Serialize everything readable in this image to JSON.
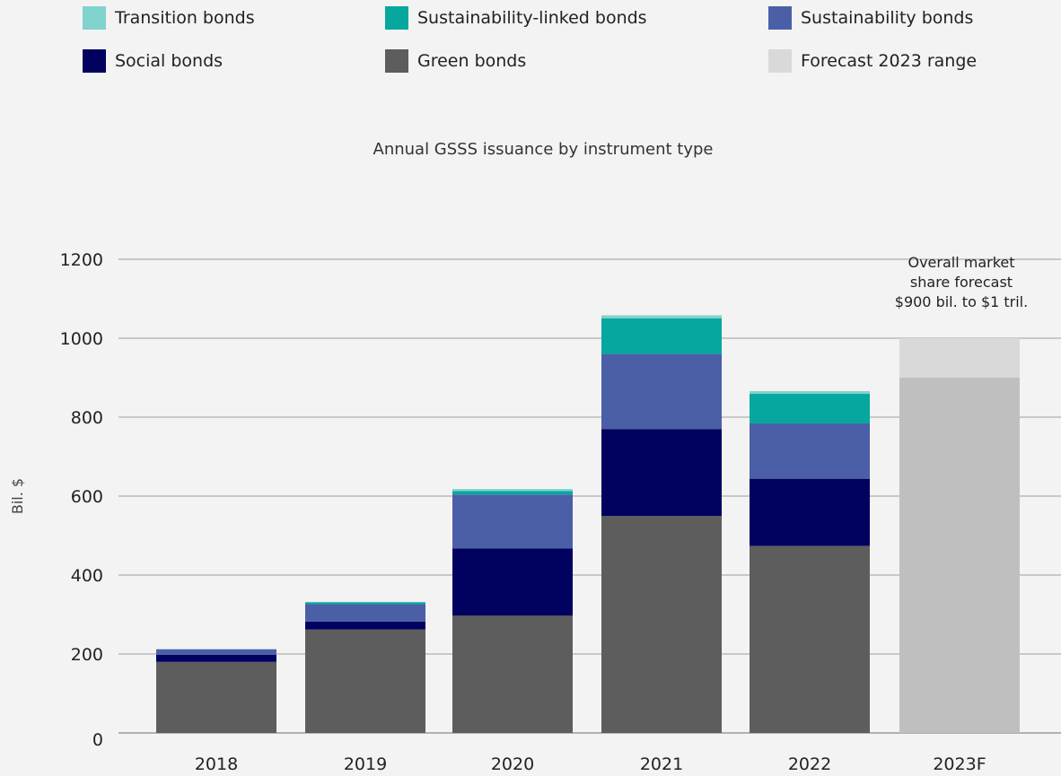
{
  "colors": {
    "transition": "#7fd3cc",
    "sustainability_linked": "#06a79e",
    "sustainability": "#4a5fa6",
    "social": "#010160",
    "green": "#5d5d5d",
    "forecast_range": "#d9d9d9",
    "forecast_base": "#bfbfbf",
    "gridline": "#c8c8c8"
  },
  "legend": [
    {
      "label": "Transition bonds",
      "color": "#7fd3cc",
      "icon": "square-swatch"
    },
    {
      "label": "Sustainability-linked bonds",
      "color": "#06a79e",
      "icon": "square-swatch"
    },
    {
      "label": "Sustainability bonds",
      "color": "#4a5fa6",
      "icon": "square-swatch"
    },
    {
      "label": "Social bonds",
      "color": "#010160",
      "icon": "square-swatch"
    },
    {
      "label": "Green bonds",
      "color": "#5d5d5d",
      "icon": "square-swatch"
    },
    {
      "label": "Forecast 2023 range",
      "color": "#d9d9d9",
      "icon": "square-swatch"
    }
  ],
  "chart_data": {
    "type": "bar",
    "stacked": true,
    "title": "Annual GSSS issuance by instrument type",
    "xlabel": "",
    "ylabel": "Bil. $",
    "ylim": [
      0,
      1200
    ],
    "yticks": [
      0,
      200,
      400,
      600,
      800,
      1000,
      1200
    ],
    "grid": true,
    "legend_position": "top",
    "categories": [
      "2018",
      "2019",
      "2020",
      "2021",
      "2022",
      "2023F"
    ],
    "series": [
      {
        "name": "Green bonds",
        "color": "#5d5d5d",
        "values": [
          180,
          262,
          297,
          550,
          474,
          null
        ]
      },
      {
        "name": "Social bonds",
        "color": "#010160",
        "values": [
          18,
          20,
          170,
          220,
          170,
          null
        ]
      },
      {
        "name": "Sustainability bonds",
        "color": "#4a5fa6",
        "values": [
          14,
          44,
          137,
          190,
          140,
          null
        ]
      },
      {
        "name": "Sustainability-linked bonds",
        "color": "#06a79e",
        "values": [
          0,
          5,
          9,
          90,
          75,
          null
        ]
      },
      {
        "name": "Transition bonds",
        "color": "#7fd3cc",
        "values": [
          0,
          1,
          5,
          8,
          7,
          null
        ]
      }
    ],
    "forecast": {
      "category": "2023F",
      "low": 900,
      "high": 1000,
      "annotation": [
        "Overall market",
        "share forecast",
        "$900 bil. to $1 tril."
      ]
    }
  }
}
